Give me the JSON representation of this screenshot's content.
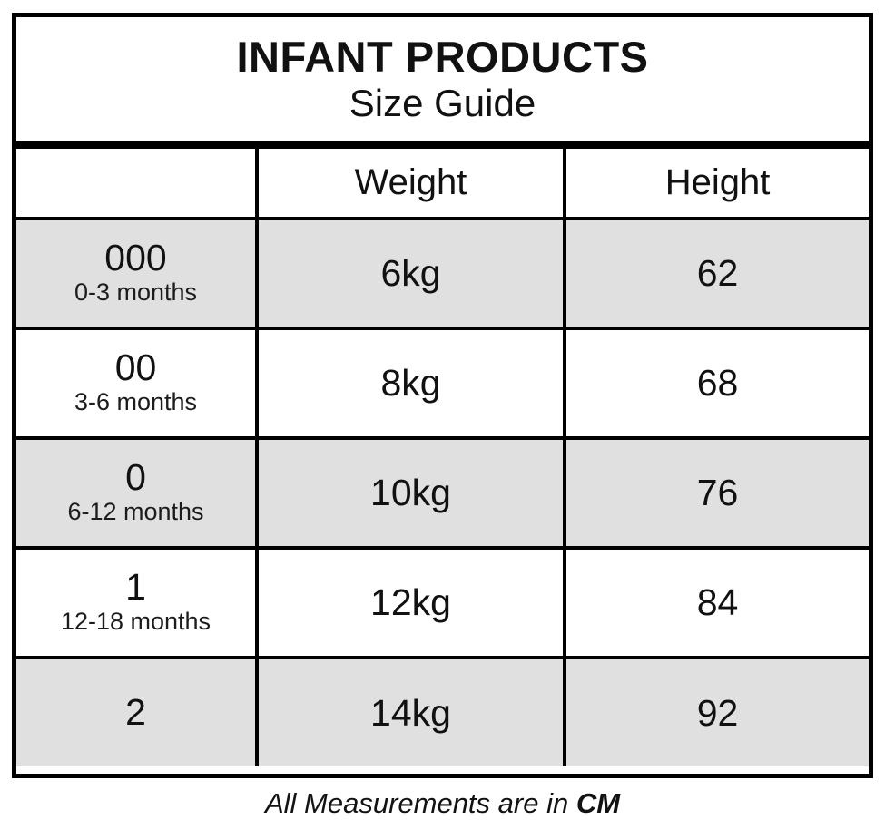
{
  "title": {
    "line1": "INFANT PRODUCTS",
    "line2": "Size Guide"
  },
  "table": {
    "columns": [
      "",
      "Weight",
      "Height"
    ],
    "rows": [
      {
        "size": "000",
        "age": "0-3 months",
        "weight": "6kg",
        "height": "62"
      },
      {
        "size": "00",
        "age": "3-6 months",
        "weight": "8kg",
        "height": "68"
      },
      {
        "size": "0",
        "age": "6-12 months",
        "weight": "10kg",
        "height": "76"
      },
      {
        "size": "1",
        "age": "12-18 months",
        "weight": "12kg",
        "height": "84"
      },
      {
        "size": "2",
        "age": "",
        "weight": "14kg",
        "height": "92"
      }
    ]
  },
  "footer": {
    "prefix": "All Measurements are in ",
    "unit": "CM"
  },
  "colors": {
    "shaded_row": "#e0e0e0",
    "border": "#000000",
    "background": "#ffffff"
  }
}
